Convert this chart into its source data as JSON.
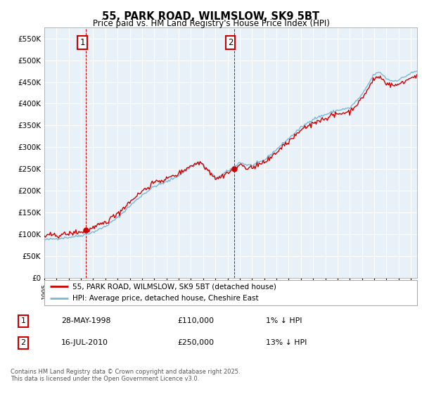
{
  "title": "55, PARK ROAD, WILMSLOW, SK9 5BT",
  "subtitle": "Price paid vs. HM Land Registry's House Price Index (HPI)",
  "ylim": [
    0,
    575000
  ],
  "xlim_start": 1995.0,
  "xlim_end": 2025.5,
  "hpi_color": "#7bb8d4",
  "price_color": "#cc0000",
  "legend_label_price": "55, PARK ROAD, WILMSLOW, SK9 5BT (detached house)",
  "legend_label_hpi": "HPI: Average price, detached house, Cheshire East",
  "sale1_date": 1998.41,
  "sale1_price": 110000,
  "sale1_label": "1",
  "sale2_date": 2010.54,
  "sale2_price": 250000,
  "sale2_label": "2",
  "table_row1": [
    "1",
    "28-MAY-1998",
    "£110,000",
    "1% ↓ HPI"
  ],
  "table_row2": [
    "2",
    "16-JUL-2010",
    "£250,000",
    "13% ↓ HPI"
  ],
  "footer": "Contains HM Land Registry data © Crown copyright and database right 2025.\nThis data is licensed under the Open Government Licence v3.0.",
  "background_color": "#ffffff",
  "chart_bg_color": "#e8f0f8",
  "grid_color": "#ffffff",
  "vline_color": "#cc0000"
}
